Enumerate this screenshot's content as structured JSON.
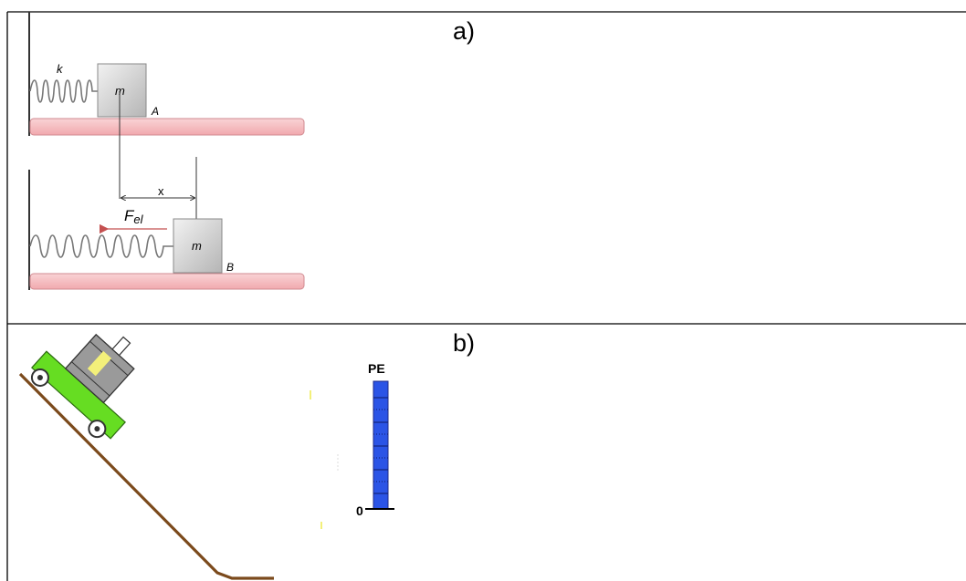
{
  "panels": {
    "a": {
      "label": "a)",
      "spring_constant_label": "k",
      "mass_label_top": "m",
      "mass_label_bottom": "m",
      "point_a_label": "A",
      "point_b_label": "B",
      "displacement_label": "x",
      "force_label_main": "F",
      "force_label_sub": "el",
      "colors": {
        "floor": "#f6c1c4",
        "block": "#d4d4d4",
        "spring": "#777777",
        "force_arrow": "#c45050"
      }
    },
    "b": {
      "label": "b)",
      "gauge_title": "PE",
      "gauge_zero_label": "0",
      "gauge_level": 1.0,
      "colors": {
        "ramp": "#7b4a1c",
        "cart": "#66dd22",
        "box": "#9a9a9a",
        "gauge": "#2b54e6",
        "highlight": "#f3f07a"
      }
    }
  }
}
